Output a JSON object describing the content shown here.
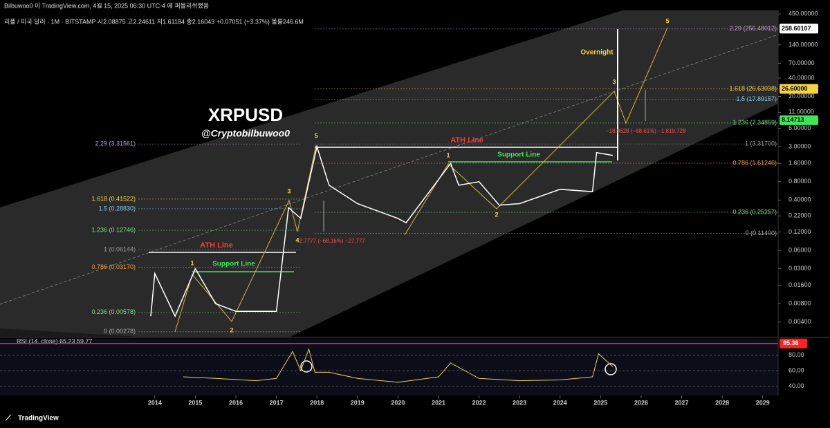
{
  "header": {
    "publisher": "Bilbuwoo0 이 TradingView.com, 4월 15, 2025 06:30 UTC-4 에 퍼블리쉬했음",
    "symbol": "리플 / 미국 달러 · 1M · BITSTAMP  시2.08875  고2.24611  저1.61184  종2.16043  +0.07051 (+3.37%)  볼륨246.6M"
  },
  "footer": {
    "brand": "TradingView"
  },
  "chart_data": {
    "type": "line",
    "title": "XRPUSD",
    "subtitle": "@Cryptobilbuwoo0",
    "log_scale": true,
    "xlim": [
      2010.18,
      2029.38
    ],
    "xticks": [
      2014,
      2015,
      2016,
      2017,
      2018,
      2019,
      2020,
      2021,
      2022,
      2023,
      2024,
      2025,
      2026,
      2027,
      2028,
      2029
    ],
    "ylim": [
      0.0023,
      515
    ],
    "yticks": [
      {
        "value": 450,
        "label": "450.00000"
      },
      {
        "value": 140,
        "label": "140.00000"
      },
      {
        "value": 70,
        "label": "70.00000"
      },
      {
        "value": 40,
        "label": "40.00000"
      },
      {
        "value": 20,
        "label": "20.00000"
      },
      {
        "value": 11,
        "label": "11.00000"
      },
      {
        "value": 6,
        "label": "6.00000"
      },
      {
        "value": 3,
        "label": "3.00000"
      },
      {
        "value": 1.6,
        "label": "1.60000"
      },
      {
        "value": 0.8,
        "label": "0.80000"
      },
      {
        "value": 0.4,
        "label": "0.40000"
      },
      {
        "value": 0.22,
        "label": "0.22000"
      },
      {
        "value": 0.12,
        "label": "0.12000"
      },
      {
        "value": 0.06,
        "label": "0.06000"
      },
      {
        "value": 0.03,
        "label": "0.03000"
      },
      {
        "value": 0.016,
        "label": "0.01600"
      },
      {
        "value": 0.008,
        "label": "0.00800"
      },
      {
        "value": 0.004,
        "label": "0.00400"
      }
    ],
    "series": [
      {
        "name": "XRPUSD",
        "color": "#ffffff",
        "x": [
          2013.9,
          2014.0,
          2014.5,
          2015.0,
          2015.5,
          2016.0,
          2017.0,
          2017.3,
          2017.6,
          2018.0,
          2018.3,
          2019.0,
          2020.0,
          2020.2,
          2021.3,
          2021.5,
          2022.0,
          2022.5,
          2023.0,
          2024.0,
          2024.8,
          2024.9,
          2025.3
        ],
        "values": [
          0.005,
          0.025,
          0.005,
          0.03,
          0.008,
          0.006,
          0.006,
          0.3,
          0.2,
          3.0,
          0.7,
          0.35,
          0.2,
          0.17,
          1.6,
          0.7,
          0.8,
          0.33,
          0.35,
          0.6,
          0.55,
          2.4,
          2.16
        ]
      }
    ],
    "price_tags": [
      {
        "label": "258.60107",
        "value": 258.60107,
        "color": "#ffffff"
      },
      {
        "label": "26.60000",
        "value": 26.6,
        "color": "#f5d442"
      },
      {
        "label": "8.14713",
        "value": 8.14713,
        "color": "#3ee65a"
      }
    ],
    "fib_left": [
      {
        "label": "2.29 (3.31561)",
        "level": 3.31561,
        "color": "#c39bd3"
      },
      {
        "label": "1.618 (0.41522)",
        "level": 0.41522,
        "color": "#f5d442"
      },
      {
        "label": "1.5 (0.28830)",
        "level": 0.2883,
        "color": "#7ec8e3"
      },
      {
        "label": "1.236 (0.12746)",
        "level": 0.12746,
        "color": "#7ee07e"
      },
      {
        "label": "1 (0.06144)",
        "level": 0.06144,
        "color": "#999999"
      },
      {
        "label": "0.786 (0.03170)",
        "level": 0.0317,
        "color": "#f0a040"
      },
      {
        "label": "0.236 (0.00578)",
        "level": 0.00578,
        "color": "#7ee07e"
      },
      {
        "label": "0 (0.00278)",
        "level": 0.00278,
        "color": "#aaaaaa"
      }
    ],
    "fib_right": [
      {
        "label": "2.29 (256.48012)",
        "level": 256.48012,
        "color": "#c39bd3"
      },
      {
        "label": "1.618 (26.63038)",
        "level": 26.63038,
        "color": "#f5d442"
      },
      {
        "label": "1.5 (17.89157)",
        "level": 17.89157,
        "color": "#7ec8e3"
      },
      {
        "label": "1.236 (7.34859)",
        "level": 7.34859,
        "color": "#7ee07e"
      },
      {
        "label": "1 (3.31700)",
        "level": 3.317,
        "color": "#999999"
      },
      {
        "label": "0.786 (1.61246)",
        "level": 1.61246,
        "color": "#f0a040"
      },
      {
        "label": "0.236 (0.25257)",
        "level": 0.25257,
        "color": "#7ee07e"
      },
      {
        "label": "0 (0.11400)",
        "level": 0.114,
        "color": "#aaaaaa"
      }
    ],
    "annotations": {
      "ath_left": "ATH Line",
      "ath_right": "ATH Line",
      "support_left": "Support Line",
      "support_right": "Support Line",
      "overnight": "Overnight",
      "drop_left": "−2.7777 (−68.16%) −27,777",
      "drop_right": "−18.9628 (−68.61%) −1,819,728",
      "waves": [
        "1",
        "2",
        "3",
        "4",
        "5",
        "1",
        "2",
        "3",
        "5"
      ]
    },
    "rsi": {
      "label": "RSI (14, close)  65.23  59.77",
      "ylim": [
        27.8,
        101.4
      ],
      "yticks": [
        {
          "value": 80,
          "label": "80.00"
        },
        {
          "value": 60,
          "label": "60.00"
        },
        {
          "value": 40,
          "label": "40.00"
        }
      ],
      "tag": {
        "label": "95.36",
        "value": 95.36
      },
      "color": "#e8d44d",
      "x": [
        2014.7,
        2015.5,
        2016.5,
        2017.0,
        2017.4,
        2017.6,
        2017.8,
        2017.95,
        2018.3,
        2019.0,
        2020.0,
        2021.0,
        2021.3,
        2022.0,
        2023.0,
        2024.0,
        2024.8,
        2024.95,
        2025.3
      ],
      "values": [
        52,
        50,
        47,
        50,
        85,
        60,
        88,
        58,
        58,
        50,
        45,
        52,
        70,
        50,
        47,
        48,
        52,
        82,
        65
      ]
    }
  }
}
